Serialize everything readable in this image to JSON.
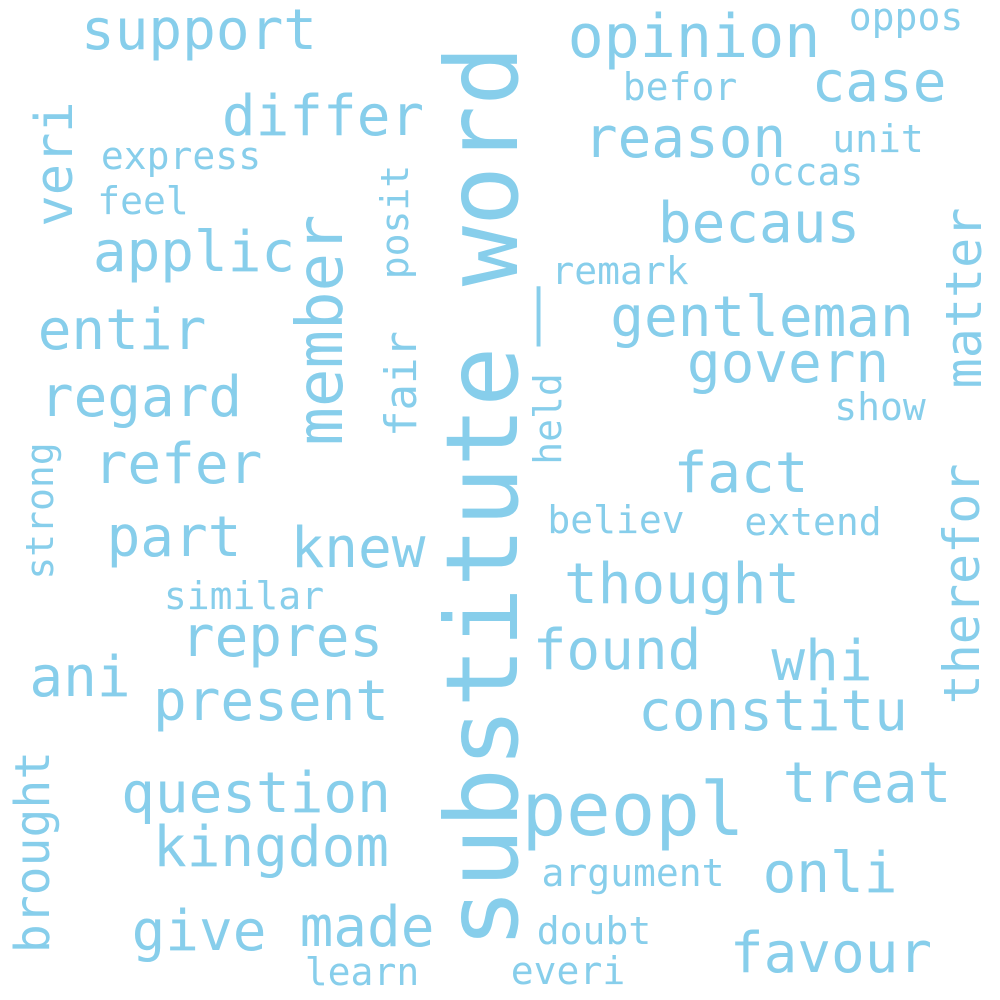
{
  "word_cloud": {
    "color": "#87ceeb",
    "background": "#ffffff",
    "words": [
      {
        "id": "substitute-word",
        "text": "substitute_word",
        "orientation": "vertical"
      },
      {
        "id": "member",
        "text": "member",
        "orientation": "vertical"
      },
      {
        "id": "opinion",
        "text": "opinion",
        "orientation": "horizontal"
      },
      {
        "id": "peopl",
        "text": "peopl",
        "orientation": "horizontal"
      },
      {
        "id": "support",
        "text": "support",
        "orientation": "horizontal"
      },
      {
        "id": "reason",
        "text": "reason",
        "orientation": "horizontal"
      },
      {
        "id": "gentleman",
        "text": "gentleman",
        "orientation": "horizontal"
      },
      {
        "id": "govern",
        "text": "govern",
        "orientation": "horizontal"
      },
      {
        "id": "question",
        "text": "question",
        "orientation": "horizontal"
      },
      {
        "id": "constitu",
        "text": "constitu",
        "orientation": "horizontal"
      },
      {
        "id": "thought",
        "text": "thought",
        "orientation": "horizontal"
      },
      {
        "id": "therefor",
        "text": "therefor",
        "orientation": "vertical"
      },
      {
        "id": "matter",
        "text": "matter",
        "orientation": "vertical"
      },
      {
        "id": "differ",
        "text": "differ",
        "orientation": "horizontal"
      },
      {
        "id": "becaus",
        "text": "becaus",
        "orientation": "horizontal"
      },
      {
        "id": "kingdom",
        "text": "kingdom",
        "orientation": "horizontal"
      },
      {
        "id": "regard",
        "text": "regard",
        "orientation": "horizontal"
      },
      {
        "id": "applic",
        "text": "applic",
        "orientation": "horizontal"
      },
      {
        "id": "favour",
        "text": "favour",
        "orientation": "horizontal"
      },
      {
        "id": "repres",
        "text": "repres",
        "orientation": "horizontal"
      },
      {
        "id": "present",
        "text": "present",
        "orientation": "horizontal"
      },
      {
        "id": "fact",
        "text": "fact",
        "orientation": "horizontal"
      },
      {
        "id": "made",
        "text": "made",
        "orientation": "horizontal"
      },
      {
        "id": "give",
        "text": "give",
        "orientation": "horizontal"
      },
      {
        "id": "found",
        "text": "found",
        "orientation": "horizontal"
      },
      {
        "id": "case",
        "text": "case",
        "orientation": "horizontal"
      },
      {
        "id": "refer",
        "text": "refer",
        "orientation": "horizontal"
      },
      {
        "id": "entir",
        "text": "entir",
        "orientation": "horizontal"
      },
      {
        "id": "part",
        "text": "part",
        "orientation": "horizontal"
      },
      {
        "id": "knew",
        "text": "knew",
        "orientation": "horizontal"
      },
      {
        "id": "onli",
        "text": "onli",
        "orientation": "horizontal"
      },
      {
        "id": "treat",
        "text": "treat",
        "orientation": "horizontal"
      },
      {
        "id": "whi",
        "text": "whi",
        "orientation": "horizontal"
      },
      {
        "id": "ani",
        "text": "ani",
        "orientation": "horizontal"
      },
      {
        "id": "brought",
        "text": "brought",
        "orientation": "vertical"
      },
      {
        "id": "veri",
        "text": "veri",
        "orientation": "vertical"
      },
      {
        "id": "fair",
        "text": "fair",
        "orientation": "vertical"
      },
      {
        "id": "argument",
        "text": "argument",
        "orientation": "horizontal"
      },
      {
        "id": "express",
        "text": "express",
        "orientation": "horizontal"
      },
      {
        "id": "similar",
        "text": "similar",
        "orientation": "horizontal"
      },
      {
        "id": "believ",
        "text": "believ",
        "orientation": "horizontal"
      },
      {
        "id": "extend",
        "text": "extend",
        "orientation": "horizontal"
      },
      {
        "id": "remark",
        "text": "remark",
        "orientation": "horizontal"
      },
      {
        "id": "learn",
        "text": "learn",
        "orientation": "horizontal"
      },
      {
        "id": "everi",
        "text": "everi",
        "orientation": "horizontal"
      },
      {
        "id": "doubt",
        "text": "doubt",
        "orientation": "horizontal"
      },
      {
        "id": "show",
        "text": "show",
        "orientation": "horizontal"
      },
      {
        "id": "unit",
        "text": "unit",
        "orientation": "horizontal"
      },
      {
        "id": "feel",
        "text": "feel",
        "orientation": "horizontal"
      },
      {
        "id": "oppos",
        "text": "oppos",
        "orientation": "horizontal"
      },
      {
        "id": "befor",
        "text": "befor",
        "orientation": "horizontal"
      },
      {
        "id": "occas",
        "text": "occas",
        "orientation": "horizontal"
      },
      {
        "id": "posit",
        "text": "posit",
        "orientation": "vertical"
      },
      {
        "id": "held",
        "text": "held",
        "orientation": "vertical"
      },
      {
        "id": "strong",
        "text": "strong",
        "orientation": "vertical"
      }
    ]
  }
}
